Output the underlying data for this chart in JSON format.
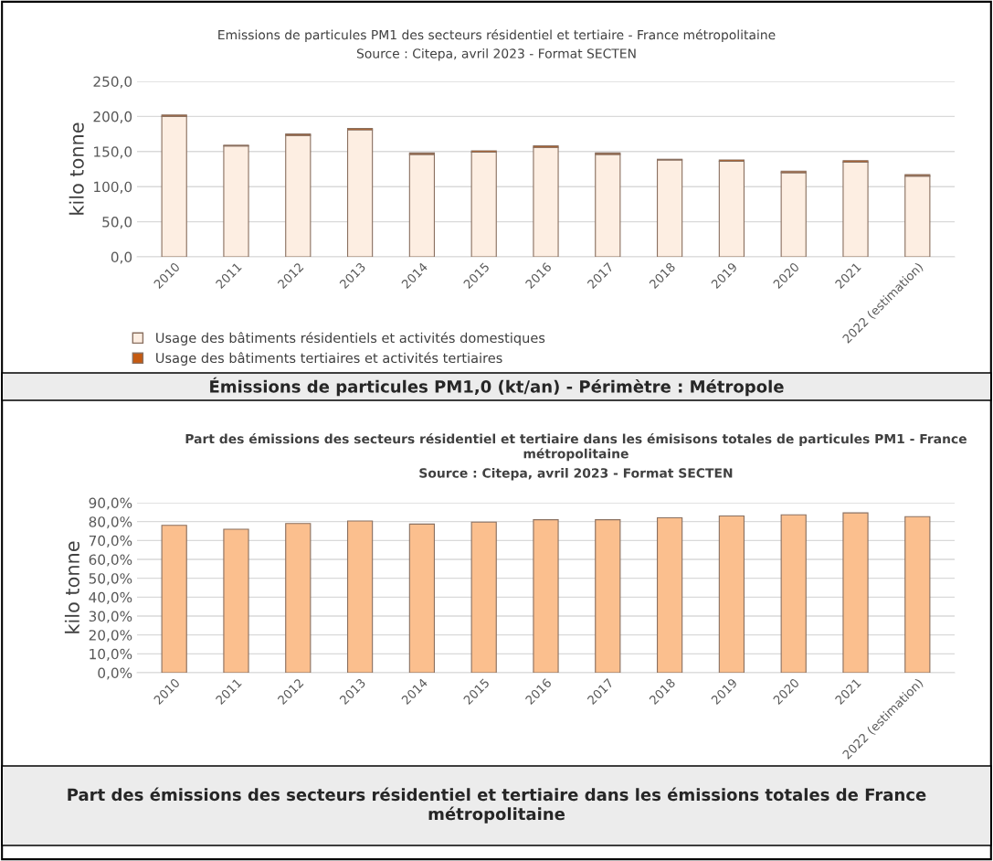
{
  "chart_data": [
    {
      "type": "bar",
      "title": "Emissions de particules PM1 des secteurs résidentiel et tertiaire - France métropolitaine",
      "subtitle": "Source : Citepa, avril 2023 - Format SECTEN",
      "ylabel": "kilo tonne",
      "categories": [
        "2010",
        "2011",
        "2012",
        "2013",
        "2014",
        "2015",
        "2016",
        "2017",
        "2018",
        "2019",
        "2020",
        "2021",
        "2022 (estimation)"
      ],
      "stacked": true,
      "series": [
        {
          "name": "Usage des bâtiments résidentiels et activités domestiques",
          "color": "#fdeee2",
          "values": [
            200,
            158,
            173,
            181,
            146,
            149,
            156,
            146,
            138,
            136,
            120,
            135,
            115
          ]
        },
        {
          "name": "Usage des bâtiments tertiaires et activités tertiaires",
          "color": "#c55a11",
          "values": [
            2,
            1,
            2,
            2,
            2,
            2,
            2,
            2,
            1,
            2,
            2,
            2,
            2
          ]
        }
      ],
      "ylim": [
        0,
        250
      ],
      "yticks": [
        {
          "value": 0,
          "label": "0,0"
        },
        {
          "value": 50,
          "label": "50,0"
        },
        {
          "value": 100,
          "label": "100,0"
        },
        {
          "value": 150,
          "label": "150,0"
        },
        {
          "value": 200,
          "label": "200,0"
        },
        {
          "value": 250,
          "label": "250,0"
        }
      ],
      "grid": "y",
      "legend": "bottom",
      "annotations": [
        "Émissions de particules PM1,0 (kt/an) - Périmètre : Métropole"
      ]
    },
    {
      "type": "bar",
      "title": "Part des émissions des secteurs résidentiel et tertiaire dans les émisisons totales de particules PM1 - France métropolitaine",
      "subtitle": "Source : Citepa, avril 2023 - Format SECTEN",
      "ylabel": "kilo tonne",
      "categories": [
        "2010",
        "2011",
        "2012",
        "2013",
        "2014",
        "2015",
        "2016",
        "2017",
        "2018",
        "2019",
        "2020",
        "2021",
        "2022 (estimation)"
      ],
      "series": [
        {
          "color": "#fbbf8e",
          "values": [
            78.0,
            76.0,
            79.0,
            80.3,
            78.7,
            79.7,
            81.0,
            81.0,
            82.0,
            83.0,
            83.6,
            84.6,
            82.6
          ]
        }
      ],
      "ylim": [
        0,
        90
      ],
      "yticks": [
        {
          "value": 0,
          "label": "0,0%"
        },
        {
          "value": 10,
          "label": "10,0%"
        },
        {
          "value": 20,
          "label": "20,0%"
        },
        {
          "value": 30,
          "label": "30,0%"
        },
        {
          "value": 40,
          "label": "40,0%"
        },
        {
          "value": 50,
          "label": "50,0%"
        },
        {
          "value": 60,
          "label": "60,0%"
        },
        {
          "value": 70,
          "label": "70,0%"
        },
        {
          "value": 80,
          "label": "80,0%"
        },
        {
          "value": 90,
          "label": "90,0%"
        }
      ],
      "grid": "y",
      "annotations": [
        "Part des émissions des secteurs résidentiel et tertiaire dans les émissions totales de France métropolitaine"
      ]
    }
  ]
}
